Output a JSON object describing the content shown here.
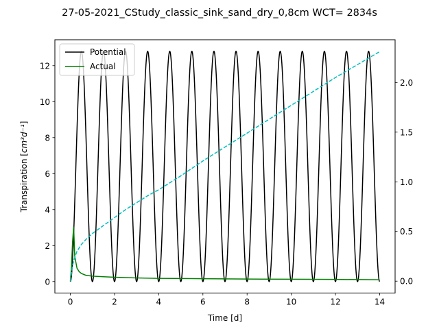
{
  "chart_data": {
    "type": "line",
    "title": "27-05-2021_CStudy_classic_sink_sand_dry_0,8cm  WCT= 2834s",
    "xlabel": "Time [d]",
    "ylabel_prefix": "Transpiration [",
    "ylabel_math": "cm³d⁻¹",
    "ylabel_suffix": "]",
    "xlim": [
      -0.7,
      14.7
    ],
    "ylim": [
      -0.64,
      13.44
    ],
    "y2lim": [
      -0.12,
      2.43
    ],
    "xticks": [
      0,
      2,
      4,
      6,
      8,
      10,
      12,
      14
    ],
    "xtick_labels": [
      "0",
      "2",
      "4",
      "6",
      "8",
      "10",
      "12",
      "14"
    ],
    "yticks": [
      0,
      2,
      4,
      6,
      8,
      10,
      12
    ],
    "ytick_labels": [
      "0",
      "2",
      "4",
      "6",
      "8",
      "10",
      "12"
    ],
    "y2ticks": [
      0.0,
      0.5,
      1.0,
      1.5,
      2.0
    ],
    "y2tick_labels": [
      "0.0",
      "0.5",
      "1.0",
      "1.5",
      "2.0"
    ],
    "legend_position": "top-left",
    "series": [
      {
        "name": "Potential",
        "color": "#000000",
        "style": "solid",
        "axis": "left",
        "kind": "diurnal",
        "amplitude": 12.8,
        "period_days": 1,
        "x_range": [
          0,
          14
        ]
      },
      {
        "name": "Actual",
        "color": "#008000",
        "style": "solid",
        "axis": "left",
        "x": [
          0,
          0.05,
          0.1,
          0.15,
          0.2,
          0.3,
          0.4,
          0.5,
          0.7,
          1.0,
          1.5,
          2.0,
          3.0,
          4.0,
          6.0,
          8.0,
          10.0,
          12.0,
          14.0
        ],
        "y": [
          0.0,
          0.8,
          2.2,
          3.05,
          1.4,
          0.75,
          0.55,
          0.45,
          0.35,
          0.3,
          0.27,
          0.24,
          0.2,
          0.18,
          0.16,
          0.14,
          0.13,
          0.12,
          0.1
        ]
      },
      {
        "name": "",
        "color": "#00bfbf",
        "style": "dashed",
        "axis": "right",
        "x": [
          0,
          0.1,
          0.2,
          0.3,
          0.5,
          0.75,
          1,
          1.5,
          2,
          2.5,
          3,
          3.5,
          4,
          5,
          6,
          7,
          8,
          9,
          10,
          11,
          12,
          13,
          14
        ],
        "y": [
          0.0,
          0.16,
          0.24,
          0.3,
          0.37,
          0.43,
          0.48,
          0.56,
          0.64,
          0.72,
          0.79,
          0.86,
          0.92,
          1.06,
          1.21,
          1.35,
          1.49,
          1.63,
          1.77,
          1.91,
          2.05,
          2.18,
          2.31
        ]
      }
    ]
  }
}
